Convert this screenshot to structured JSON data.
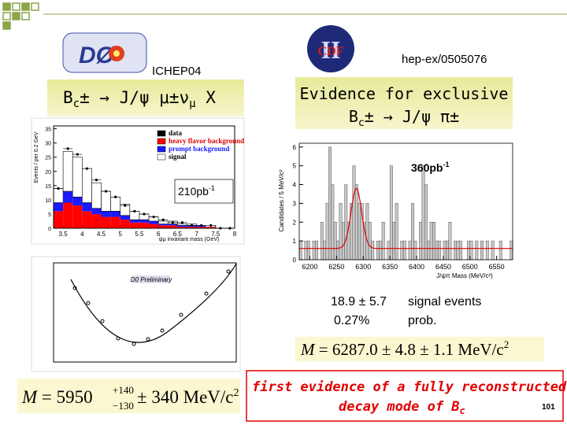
{
  "header": {
    "conference": "ICHEP04",
    "reference": "hep-ex/0505076"
  },
  "left_title": {
    "parts": [
      "B",
      "c",
      "± → J/ψ μ±ν",
      "μ",
      " X"
    ]
  },
  "right_title": {
    "line1": "Evidence for exclusive",
    "parts": [
      "B",
      "c",
      "± → J/ψ π±"
    ]
  },
  "semileptonic_plot": {
    "y_axis_label": "Events / per 0.2 GeV",
    "x_axis_label": "ψμ invariant mass (GeV)",
    "xlim": [
      3.25,
      8.0
    ],
    "ylim": [
      0,
      36
    ],
    "xticks": [
      3.5,
      4,
      4.5,
      5,
      5.5,
      6,
      6.5,
      7,
      7.5,
      8
    ],
    "yticks": [
      0,
      5,
      10,
      15,
      20,
      25,
      30,
      35
    ],
    "bins": [
      3.25,
      3.5,
      3.75,
      4.0,
      4.25,
      4.5,
      4.75,
      5.0,
      5.25,
      5.5,
      5.75,
      6.0,
      6.25,
      6.5,
      6.75,
      7.0,
      7.25,
      7.5,
      7.75,
      8.0
    ],
    "legend": [
      "data",
      "heavy flavor background",
      "prompt background",
      "signal"
    ],
    "series": [
      {
        "name": "heavy flavor background",
        "color": "#ff0000",
        "values": [
          6,
          9,
          8,
          6,
          5,
          4,
          4,
          3,
          2,
          2,
          1.5,
          1,
          1,
          0.5,
          0.5,
          0.5,
          0.5,
          0,
          0
        ]
      },
      {
        "name": "prompt background",
        "color": "#1a1aff",
        "values": [
          3,
          4,
          3,
          3,
          2,
          2,
          2,
          1.5,
          1,
          1,
          1,
          0.5,
          0.5,
          0.5,
          0.5,
          0.5,
          0,
          0,
          0
        ]
      },
      {
        "name": "signal",
        "color": "#ffffff",
        "values": [
          5,
          14,
          14,
          12,
          9,
          7,
          5,
          4,
          3,
          2,
          1.5,
          1,
          1,
          0.5,
          0.5,
          0,
          0,
          0,
          0
        ]
      }
    ],
    "data": [
      14,
      28,
      26,
      21,
      17,
      13,
      11,
      8,
      6,
      5,
      4,
      3,
      2,
      2,
      1,
      1,
      1,
      0,
      0
    ],
    "luminosity": [
      "210pb",
      "-1"
    ]
  },
  "likelihood_plot": {
    "label": "D0 Preliminary"
  },
  "exclusive_plot": {
    "y_axis_label": "Candidates / 5 MeV/c²",
    "x_axis_label": "J/ψπ Mass (MeV/c²)",
    "xlim": [
      6180,
      6580
    ],
    "ylim": [
      0,
      6.2
    ],
    "xticks": [
      6200,
      6250,
      6300,
      6350,
      6400,
      6450,
      6500,
      6550
    ],
    "yticks": [
      0,
      1,
      2,
      3,
      4,
      5,
      6
    ],
    "bin_width": 5,
    "counts": [
      1,
      0,
      1,
      1,
      0,
      1,
      1,
      0,
      2,
      1,
      3,
      6,
      4,
      2,
      1,
      3,
      2,
      4,
      2,
      3,
      5,
      4,
      3,
      3,
      2,
      3,
      2,
      1,
      0,
      1,
      1,
      2,
      0,
      1,
      5,
      2,
      3,
      0,
      1,
      1,
      0,
      1,
      3,
      1,
      0,
      2,
      5,
      4,
      1,
      2,
      2,
      1,
      1,
      0,
      1,
      1,
      2,
      0,
      1,
      1,
      1,
      0,
      0,
      1,
      1,
      0,
      1,
      0,
      1,
      0,
      1,
      0,
      1,
      0,
      0,
      1,
      0,
      0,
      0,
      1
    ],
    "fit": {
      "mean": 6287,
      "sigma": 10,
      "peak": 3.2,
      "background": 0.6
    },
    "luminosity": [
      "360pb",
      "-1"
    ]
  },
  "result": {
    "signal": "18.9 ± 5.7",
    "signal_label": "signal events",
    "probability": "0.27%",
    "probability_label": "prob."
  },
  "right_formula": [
    "M",
    " = 6287.0 ± 4.8 ± 1.1 MeV/c",
    "2"
  ],
  "left_formula": [
    "M",
    " = 5950",
    "+140",
    "−130",
    " ± 340 MeV/c",
    "2"
  ],
  "footer": {
    "line1": "first evidence of a fully reconstructed",
    "line2": [
      "decay mode of B",
      "c"
    ],
    "page": "101"
  }
}
